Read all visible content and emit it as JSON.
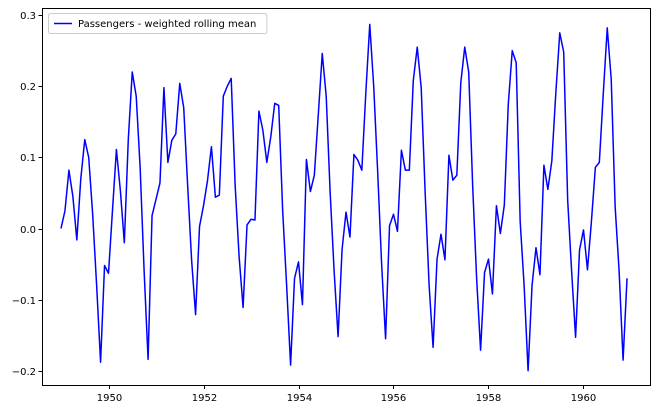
{
  "chart_data": {
    "type": "line",
    "title": "",
    "xlabel": "",
    "ylabel": "",
    "xlim": [
      1948.6,
      1961.4
    ],
    "ylim": [
      -0.22,
      0.31
    ],
    "x_ticks": [
      1950,
      1952,
      1954,
      1956,
      1958,
      1960
    ],
    "x_tick_labels": [
      "1950",
      "1952",
      "1954",
      "1956",
      "1958",
      "1960"
    ],
    "y_ticks": [
      -0.2,
      -0.1,
      0.0,
      0.1,
      0.2,
      0.3
    ],
    "y_tick_labels": [
      "−0.2",
      "−0.1",
      "0.0",
      "0.1",
      "0.2",
      "0.3"
    ],
    "grid": false,
    "legend_position": "upper-left",
    "series": [
      {
        "name": "Passengers - weighted rolling mean",
        "color": "#0000ff",
        "start_year": 1949,
        "step_months": 1,
        "values": [
          0.0,
          0.025,
          0.082,
          0.045,
          -0.016,
          0.07,
          0.125,
          0.1,
          0.02,
          -0.08,
          -0.188,
          -0.052,
          -0.063,
          0.025,
          0.111,
          0.053,
          -0.02,
          0.125,
          0.22,
          0.186,
          0.085,
          -0.06,
          -0.184,
          0.018,
          0.041,
          0.064,
          0.198,
          0.093,
          0.124,
          0.133,
          0.204,
          0.17,
          0.06,
          -0.045,
          -0.121,
          0.003,
          0.032,
          0.067,
          0.115,
          0.044,
          0.047,
          0.186,
          0.2,
          0.211,
          0.06,
          -0.04,
          -0.111,
          0.005,
          0.013,
          0.012,
          0.165,
          0.138,
          0.093,
          0.129,
          0.176,
          0.173,
          0.025,
          -0.08,
          -0.192,
          -0.07,
          -0.047,
          -0.107,
          0.097,
          0.052,
          0.075,
          0.16,
          0.246,
          0.186,
          0.05,
          -0.06,
          -0.152,
          -0.03,
          0.023,
          -0.012,
          0.104,
          0.096,
          0.082,
          0.19,
          0.287,
          0.2,
          0.08,
          -0.05,
          -0.155,
          0.004,
          0.02,
          -0.004,
          0.11,
          0.082,
          0.082,
          0.208,
          0.255,
          0.198,
          0.05,
          -0.08,
          -0.167,
          -0.043,
          -0.008,
          -0.044,
          0.103,
          0.068,
          0.075,
          0.205,
          0.255,
          0.22,
          0.06,
          -0.07,
          -0.171,
          -0.062,
          -0.043,
          -0.092,
          0.032,
          -0.007,
          0.033,
          0.175,
          0.25,
          0.233,
          0.01,
          -0.08,
          -0.2,
          -0.08,
          -0.027,
          -0.065,
          0.089,
          0.055,
          0.095,
          0.19,
          0.275,
          0.248,
          0.04,
          -0.06,
          -0.153,
          -0.03,
          -0.002,
          -0.058,
          0.01,
          0.086,
          0.093,
          0.19,
          0.282,
          0.21,
          0.03,
          -0.06,
          -0.185,
          -0.07
        ]
      }
    ]
  }
}
